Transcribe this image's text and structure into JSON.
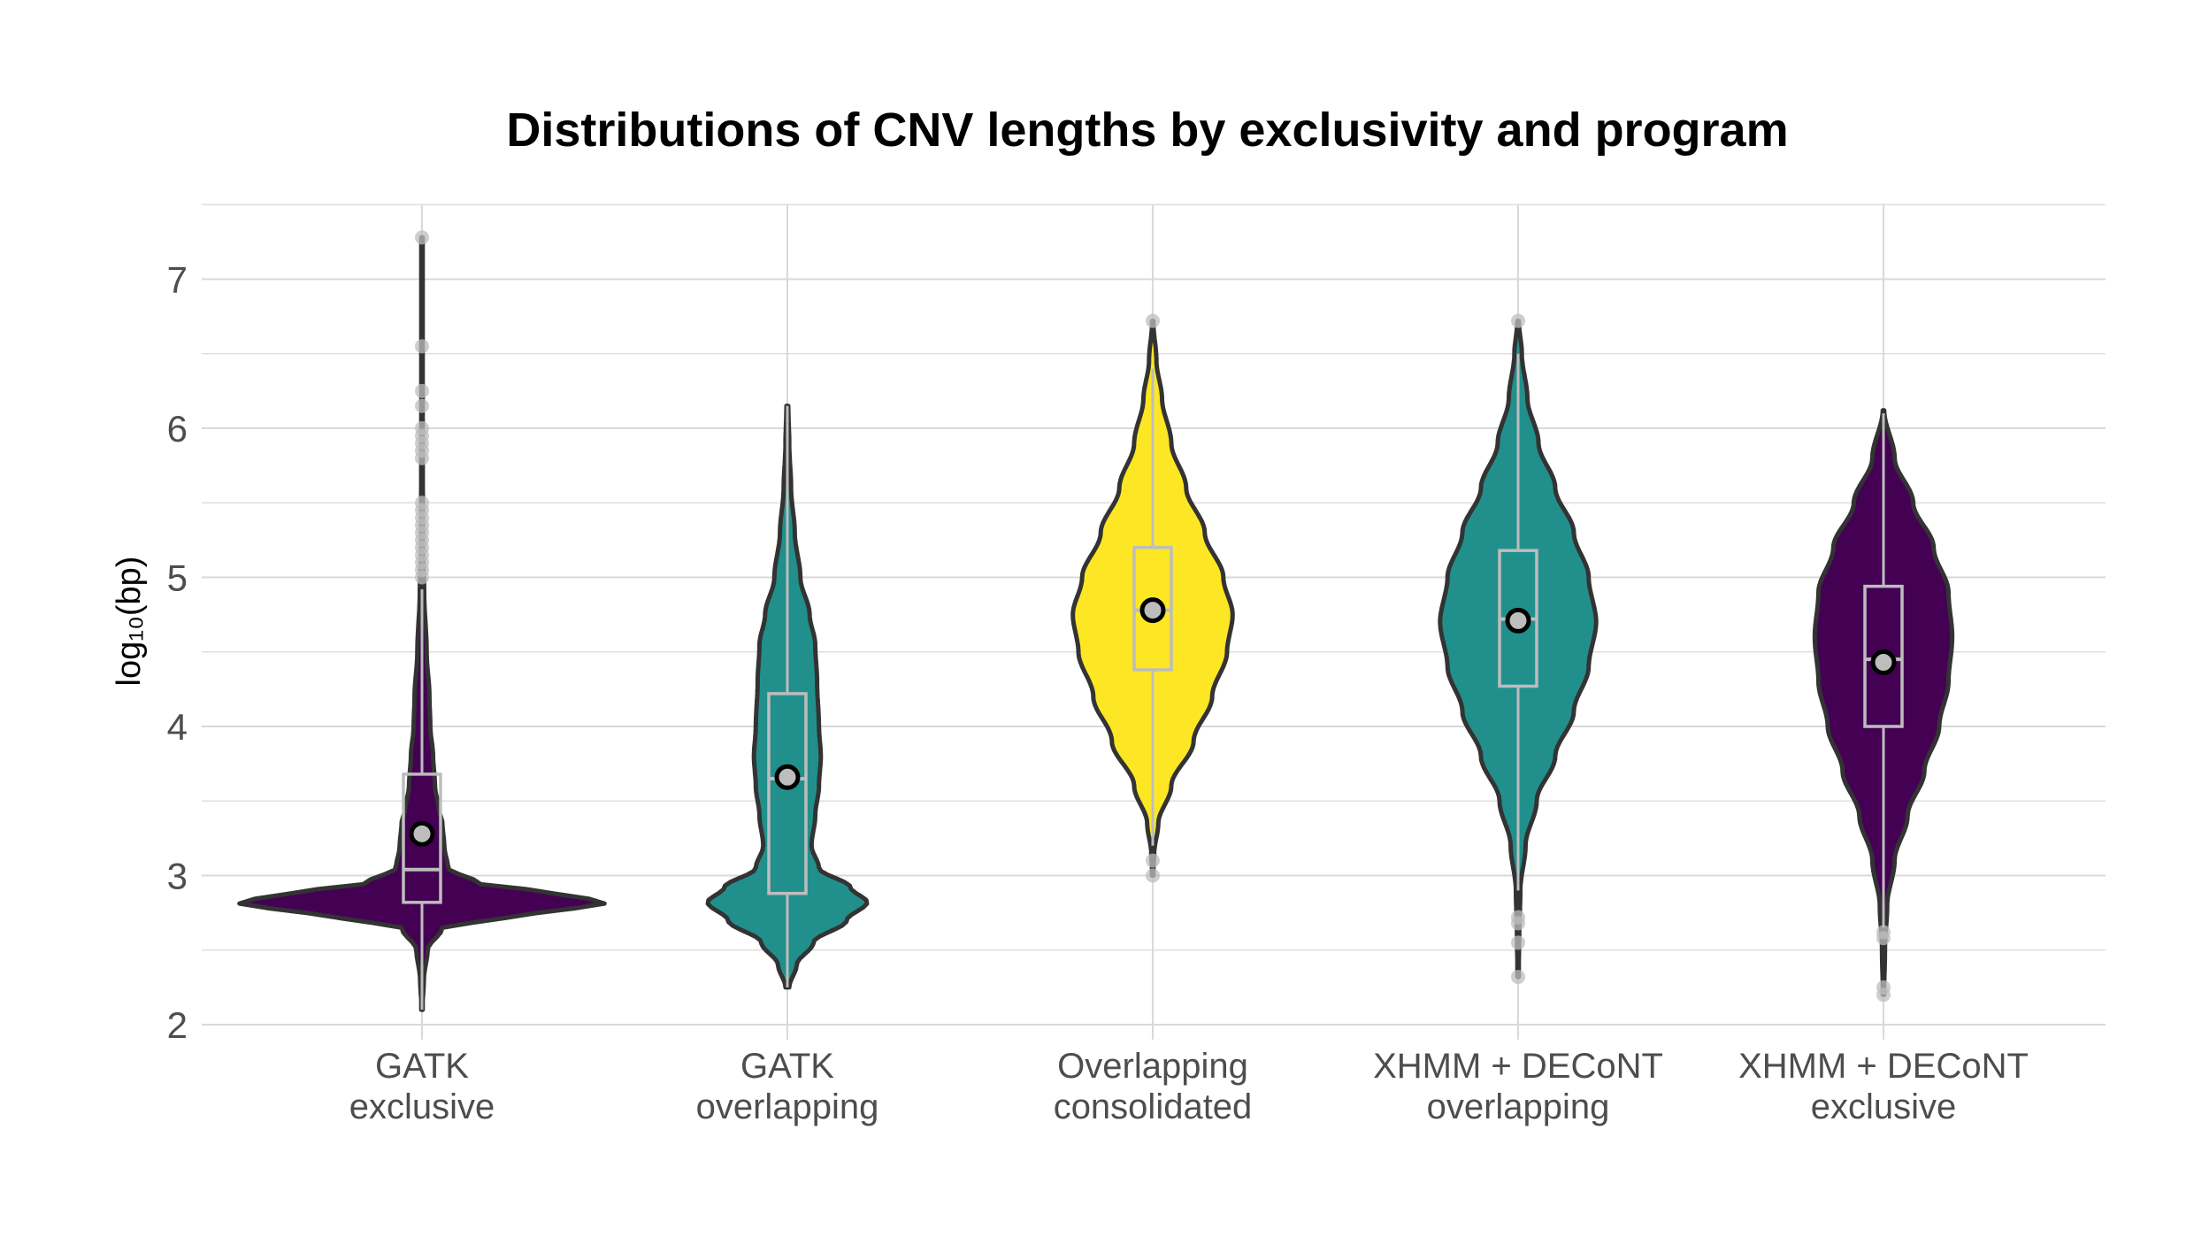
{
  "chart_data": {
    "type": "violin",
    "title": "Distributions of CNV lengths by exclusivity and program",
    "xlabel": "",
    "ylabel": "log₁₀(bp)",
    "ylim": [
      1.9,
      7.5
    ],
    "yticks": [
      "2",
      "3",
      "4",
      "5",
      "6",
      "7"
    ],
    "grid": true,
    "legend": "none",
    "colors": {
      "purple": "#440154",
      "teal": "#21908C",
      "yellow": "#FDE725",
      "outline": "#333333",
      "box": "#BDBDBD",
      "grid": "#D9D9D9",
      "outlier": "#BDBDBD"
    },
    "groups": [
      {
        "label_line1": "GATK",
        "label_line2": "exclusive",
        "color": "#440154",
        "violin_range": [
          2.1,
          7.28
        ],
        "profile": [
          [
            2.1,
            0.002
          ],
          [
            2.3,
            0.01
          ],
          [
            2.5,
            0.03
          ],
          [
            2.65,
            0.11
          ],
          [
            2.72,
            0.45
          ],
          [
            2.78,
            0.82
          ],
          [
            2.82,
            1.0
          ],
          [
            2.88,
            0.72
          ],
          [
            2.95,
            0.3
          ],
          [
            3.05,
            0.14
          ],
          [
            3.2,
            0.12
          ],
          [
            3.35,
            0.11
          ],
          [
            3.45,
            0.09
          ],
          [
            3.6,
            0.07
          ],
          [
            3.8,
            0.06
          ],
          [
            4.0,
            0.045
          ],
          [
            4.2,
            0.04
          ],
          [
            4.5,
            0.025
          ],
          [
            4.9,
            0.012
          ],
          [
            5.2,
            0.005
          ],
          [
            6.0,
            0.004
          ],
          [
            7.28,
            0.002
          ]
        ],
        "box": {
          "q1": 2.82,
          "median": 3.04,
          "q3": 3.68,
          "whisker_low": 2.1,
          "whisker_high": 4.92
        },
        "mean": 3.28,
        "outliers": [
          5.0,
          5.05,
          5.1,
          5.15,
          5.2,
          5.25,
          5.3,
          5.35,
          5.4,
          5.45,
          5.5,
          5.8,
          5.85,
          5.9,
          5.95,
          6.0,
          6.15,
          6.25,
          6.55,
          7.28
        ]
      },
      {
        "label_line1": "GATK",
        "label_line2": "overlapping",
        "color": "#21908C",
        "violin_range": [
          2.25,
          6.15
        ],
        "profile": [
          [
            2.25,
            0.01
          ],
          [
            2.4,
            0.05
          ],
          [
            2.55,
            0.14
          ],
          [
            2.7,
            0.32
          ],
          [
            2.82,
            0.43
          ],
          [
            2.92,
            0.34
          ],
          [
            3.05,
            0.17
          ],
          [
            3.2,
            0.13
          ],
          [
            3.4,
            0.15
          ],
          [
            3.6,
            0.17
          ],
          [
            3.8,
            0.18
          ],
          [
            4.0,
            0.17
          ],
          [
            4.3,
            0.16
          ],
          [
            4.55,
            0.15
          ],
          [
            4.75,
            0.12
          ],
          [
            5.0,
            0.07
          ],
          [
            5.3,
            0.04
          ],
          [
            5.6,
            0.02
          ],
          [
            5.9,
            0.01
          ],
          [
            6.15,
            0.005
          ]
        ],
        "box": {
          "q1": 2.88,
          "median": 3.65,
          "q3": 4.22,
          "whisker_low": 2.25,
          "whisker_high": 6.15
        },
        "mean": 3.66,
        "outliers": []
      },
      {
        "label_line1": "Overlapping",
        "label_line2": "consolidated",
        "color": "#FDE725",
        "violin_range": [
          3.0,
          6.72
        ],
        "profile": [
          [
            3.0,
            0.002
          ],
          [
            3.15,
            0.008
          ],
          [
            3.35,
            0.03
          ],
          [
            3.6,
            0.1
          ],
          [
            3.9,
            0.22
          ],
          [
            4.2,
            0.32
          ],
          [
            4.5,
            0.4
          ],
          [
            4.75,
            0.43
          ],
          [
            5.0,
            0.38
          ],
          [
            5.3,
            0.28
          ],
          [
            5.6,
            0.18
          ],
          [
            5.9,
            0.1
          ],
          [
            6.2,
            0.05
          ],
          [
            6.45,
            0.02
          ],
          [
            6.72,
            0.003
          ]
        ],
        "box": {
          "q1": 4.38,
          "median": 4.78,
          "q3": 5.2,
          "whisker_low": 3.2,
          "whisker_high": 6.4
        },
        "mean": 4.78,
        "outliers": [
          3.0,
          3.1,
          6.72
        ]
      },
      {
        "label_line1": "XHMM + DECoNT",
        "label_line2": "overlapping",
        "color": "#21908C",
        "violin_range": [
          2.32,
          6.72
        ],
        "profile": [
          [
            2.32,
            0.003
          ],
          [
            2.6,
            0.006
          ],
          [
            2.9,
            0.012
          ],
          [
            3.2,
            0.04
          ],
          [
            3.5,
            0.1
          ],
          [
            3.8,
            0.2
          ],
          [
            4.1,
            0.3
          ],
          [
            4.4,
            0.38
          ],
          [
            4.7,
            0.42
          ],
          [
            5.0,
            0.38
          ],
          [
            5.3,
            0.3
          ],
          [
            5.6,
            0.2
          ],
          [
            5.9,
            0.11
          ],
          [
            6.2,
            0.05
          ],
          [
            6.5,
            0.02
          ],
          [
            6.72,
            0.004
          ]
        ],
        "box": {
          "q1": 4.27,
          "median": 4.72,
          "q3": 5.18,
          "whisker_low": 2.9,
          "whisker_high": 6.5
        },
        "mean": 4.71,
        "outliers": [
          2.32,
          2.55,
          2.68,
          2.72,
          6.72
        ]
      },
      {
        "label_line1": "XHMM + DECoNT",
        "label_line2": "exclusive",
        "color": "#440154",
        "violin_range": [
          2.2,
          6.12
        ],
        "profile": [
          [
            2.2,
            0.003
          ],
          [
            2.5,
            0.008
          ],
          [
            2.8,
            0.02
          ],
          [
            3.1,
            0.06
          ],
          [
            3.4,
            0.13
          ],
          [
            3.7,
            0.22
          ],
          [
            4.0,
            0.3
          ],
          [
            4.3,
            0.35
          ],
          [
            4.6,
            0.37
          ],
          [
            4.9,
            0.35
          ],
          [
            5.2,
            0.27
          ],
          [
            5.5,
            0.16
          ],
          [
            5.8,
            0.06
          ],
          [
            6.12,
            0.004
          ]
        ],
        "box": {
          "q1": 4.0,
          "median": 4.45,
          "q3": 4.94,
          "whisker_low": 2.65,
          "whisker_high": 6.1
        },
        "mean": 4.43,
        "outliers": [
          2.2,
          2.25,
          2.58,
          2.62
        ]
      }
    ]
  }
}
